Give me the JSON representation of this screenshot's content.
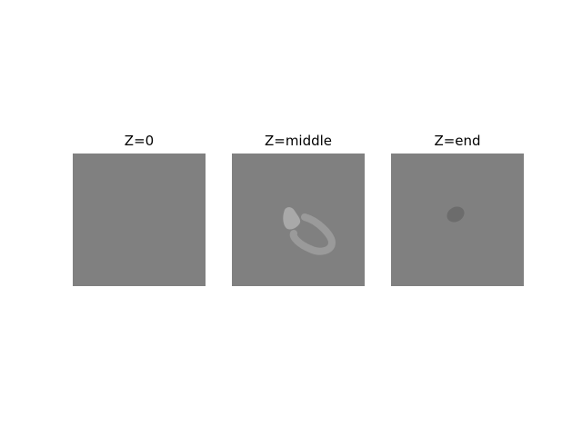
{
  "panels": [
    {
      "title": "Z=0"
    },
    {
      "title": "Z=middle"
    },
    {
      "title": "Z=end"
    }
  ],
  "colors": {
    "background": "#808080",
    "bright_region": "#a9a9a9",
    "mid_region": "#9a9a9a",
    "dark_region": "#6c6c6c"
  }
}
